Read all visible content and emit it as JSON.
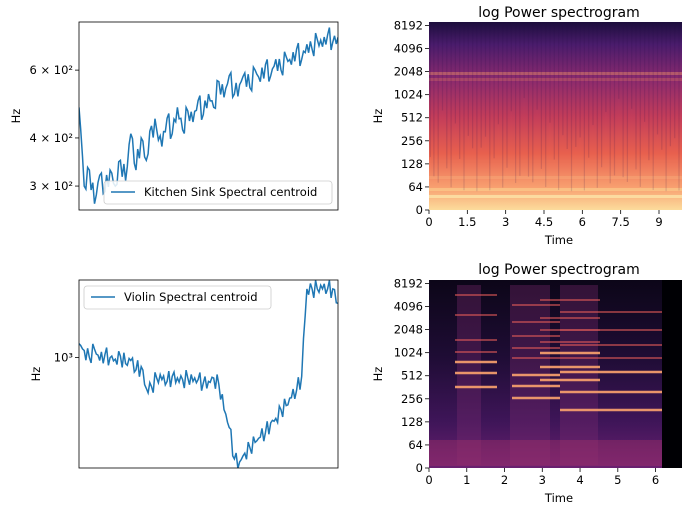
{
  "chart_data": [
    {
      "type": "line",
      "ylabel": "Hz",
      "y_scale": "log",
      "ylim": [
        260,
        800
      ],
      "series": [
        {
          "name": "Kitchen Sink Spectral centroid",
          "color": "#1f77b4"
        }
      ],
      "yticks": [
        {
          "value": 300,
          "label": "3 × 10²"
        },
        {
          "value": 400,
          "label": "4 × 10²"
        },
        {
          "value": 600,
          "label": "6 × 10²"
        }
      ],
      "legend_position": "lower right",
      "x": [
        0,
        2,
        4,
        6,
        8,
        10,
        12,
        14,
        16,
        18,
        20,
        22,
        24,
        26,
        28,
        30,
        32,
        34,
        36,
        38,
        40,
        42,
        44,
        46,
        48,
        50,
        52,
        54,
        56,
        58,
        60,
        62,
        64,
        66,
        68,
        70,
        72,
        74,
        76,
        78,
        80,
        82,
        84,
        86,
        88,
        90,
        92,
        94,
        96,
        98,
        100
      ],
      "y": [
        480,
        300,
        330,
        270,
        320,
        290,
        330,
        300,
        350,
        310,
        410,
        330,
        400,
        350,
        430,
        420,
        380,
        450,
        410,
        480,
        420,
        470,
        440,
        500,
        460,
        520,
        480,
        560,
        510,
        580,
        520,
        550,
        590,
        540,
        600,
        560,
        620,
        580,
        640,
        600,
        650,
        620,
        680,
        640,
        700,
        680,
        720,
        690,
        740,
        710,
        730
      ]
    },
    {
      "type": "heatmap",
      "title": "log Power spectrogram",
      "xlabel": "Time",
      "ylabel": "Hz",
      "xticks": [
        "0",
        "1.5",
        "3",
        "4.5",
        "6",
        "7.5",
        "9"
      ],
      "xlim": [
        0,
        9.9
      ],
      "yticks": [
        "0",
        "64",
        "128",
        "256",
        "512",
        "1024",
        "2048",
        "4096",
        "8192"
      ]
    },
    {
      "type": "line",
      "ylabel": "Hz",
      "y_scale": "log",
      "ylim": [
        470,
        1700
      ],
      "series": [
        {
          "name": "Violin Spectral centroid",
          "color": "#1f77b4"
        }
      ],
      "yticks": [
        {
          "value": 1000,
          "label": "10³"
        }
      ],
      "legend_position": "upper left",
      "x": [
        0,
        2,
        4,
        6,
        8,
        10,
        12,
        14,
        16,
        18,
        20,
        22,
        24,
        26,
        28,
        30,
        32,
        34,
        36,
        38,
        40,
        42,
        44,
        46,
        48,
        50,
        52,
        54,
        56,
        58,
        60,
        62,
        64,
        66,
        68,
        70,
        72,
        74,
        76,
        78,
        80,
        82,
        84,
        86,
        88,
        90,
        92,
        94,
        96,
        98,
        100
      ],
      "y": [
        1100,
        1050,
        1000,
        1060,
        980,
        1020,
        1000,
        990,
        1010,
        960,
        980,
        920,
        940,
        810,
        820,
        870,
        860,
        850,
        880,
        870,
        860,
        870,
        850,
        860,
        840,
        850,
        870,
        830,
        700,
        620,
        500,
        490,
        520,
        540,
        560,
        580,
        600,
        640,
        660,
        700,
        720,
        760,
        800,
        880,
        1600,
        1600,
        1600,
        1600,
        1600,
        1600,
        1450
      ]
    },
    {
      "type": "heatmap",
      "title": "log Power spectrogram",
      "xlabel": "Time",
      "ylabel": "Hz",
      "xticks": [
        "0",
        "1",
        "2",
        "3",
        "4",
        "5",
        "6"
      ],
      "xlim": [
        0,
        6.7
      ],
      "yticks": [
        "0",
        "64",
        "128",
        "256",
        "512",
        "1024",
        "2048",
        "4096",
        "8192"
      ]
    }
  ]
}
